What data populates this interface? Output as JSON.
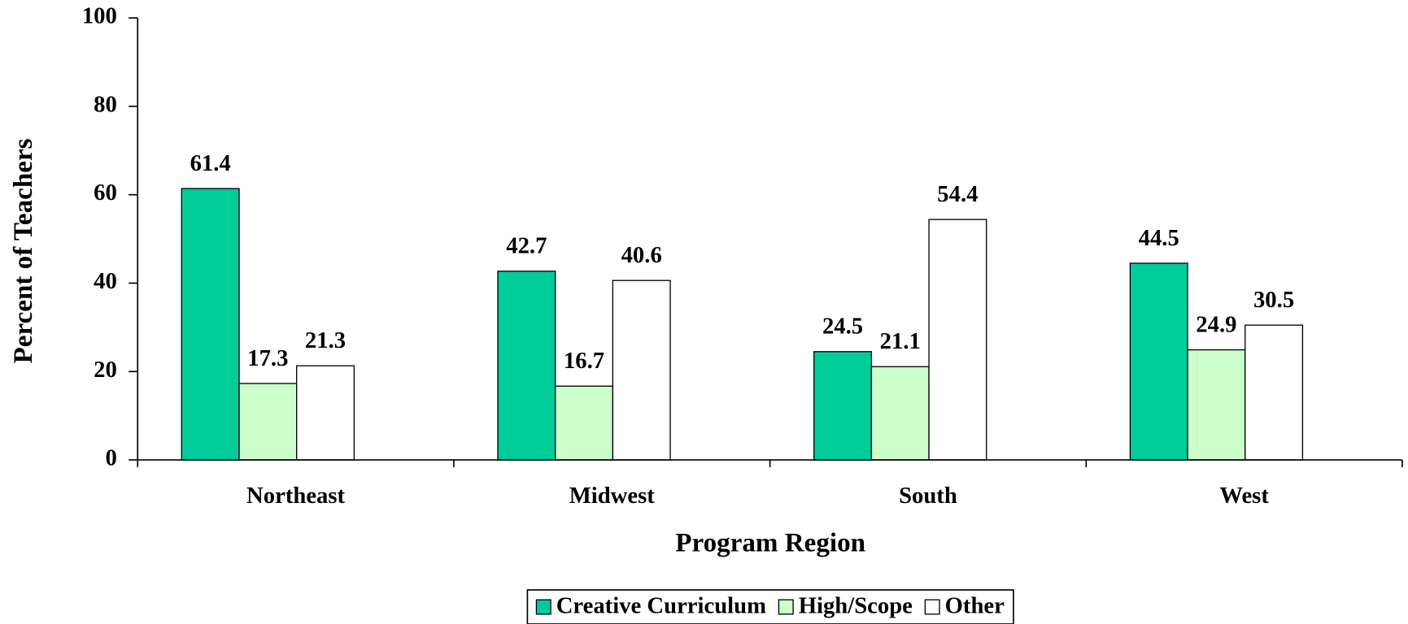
{
  "chart_data": {
    "type": "bar",
    "x_label": "Program Region",
    "y_label": "Percent of Teachers",
    "categories": [
      "Northeast",
      "Midwest",
      "South",
      "West"
    ],
    "series": [
      {
        "name": "Creative Curriculum",
        "color": "#00cc99",
        "values": [
          61.4,
          42.7,
          24.5,
          44.5
        ]
      },
      {
        "name": "High/Scope",
        "color": "#ccffcc",
        "values": [
          17.3,
          16.7,
          21.1,
          24.9
        ]
      },
      {
        "name": "Other",
        "color": "#ffffff",
        "values": [
          21.3,
          40.6,
          54.4,
          30.5
        ]
      }
    ],
    "ylim": [
      0,
      100
    ],
    "yticks": [
      0,
      20,
      40,
      60,
      80,
      100
    ],
    "legend": "bottom"
  }
}
